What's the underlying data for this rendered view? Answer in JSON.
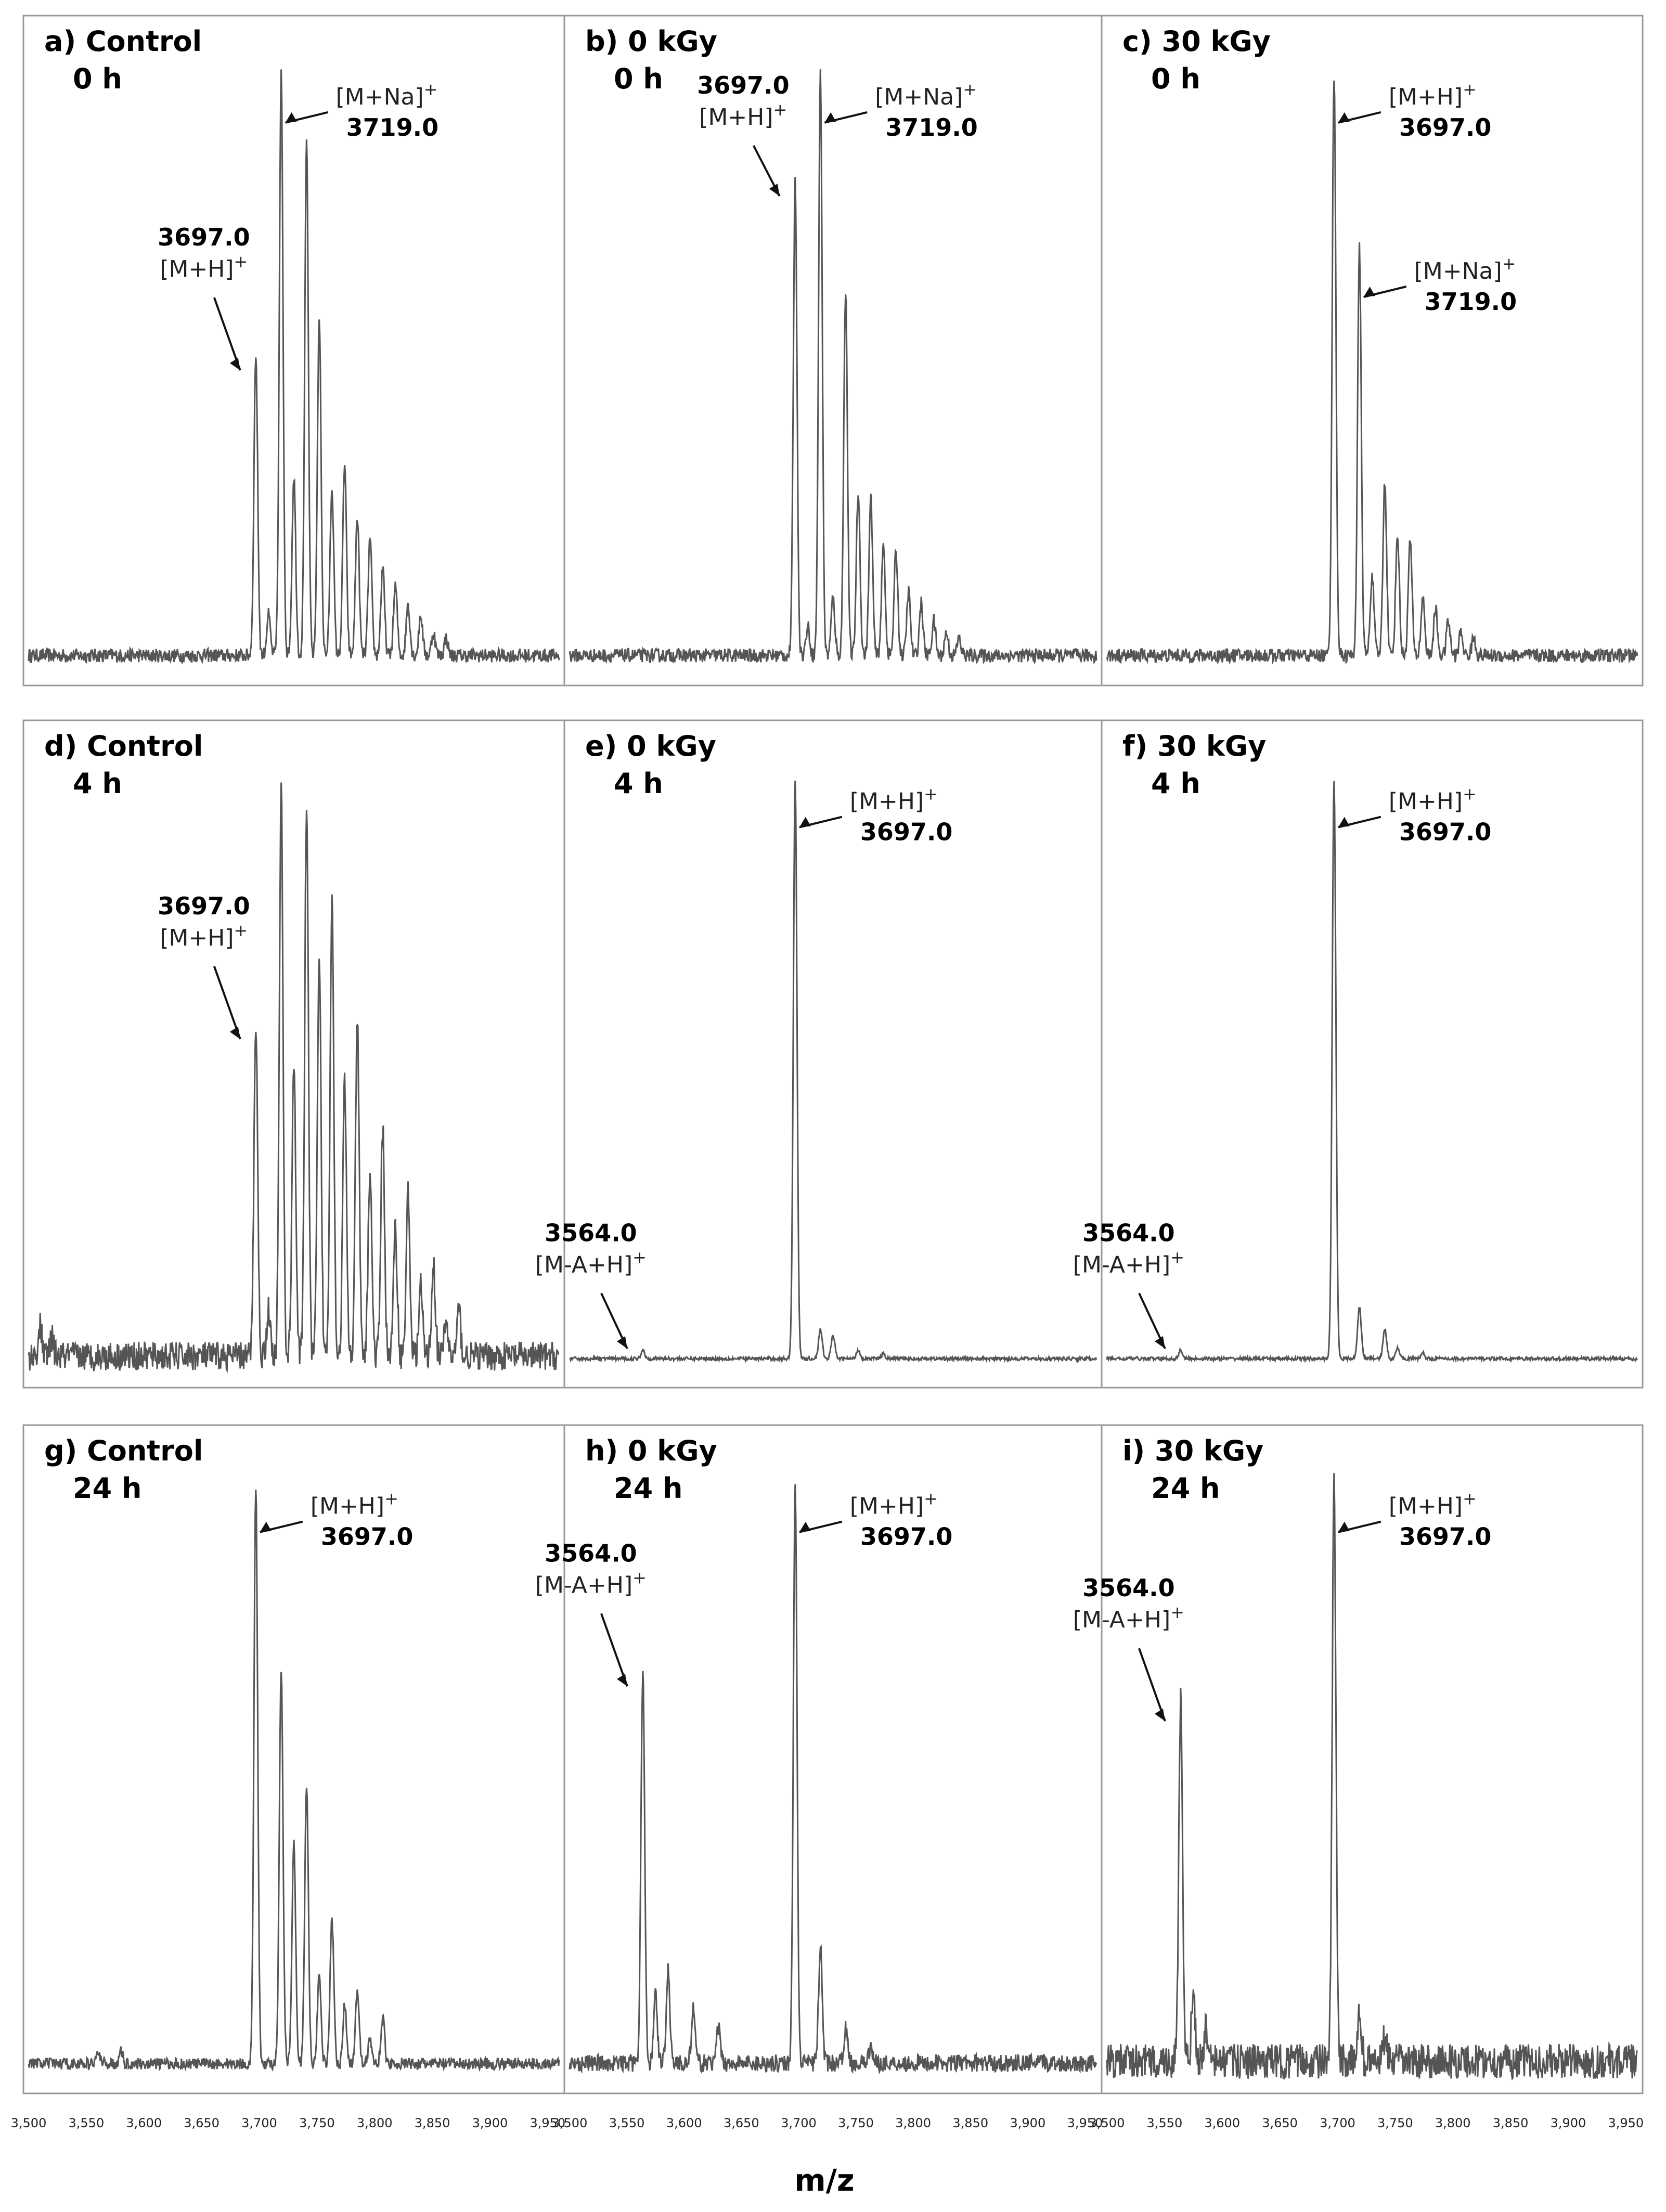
{
  "figure": {
    "xlabel": "m/z"
  },
  "colors": {
    "trace": "#555555",
    "annotation": "#111111",
    "frame": "#999999",
    "text": "#000000"
  },
  "chart_data": [
    {
      "id": "a",
      "type": "line",
      "title_line1": "a) Control",
      "title_line2": "0 h",
      "xlim": [
        3500,
        3960
      ],
      "ylim": [
        0,
        1.05
      ],
      "noise": 0.012,
      "peaks": [
        [
          3697,
          0.52
        ],
        [
          3719,
          1.0
        ],
        [
          3741,
          0.88
        ],
        [
          3763,
          0.29
        ],
        [
          3785,
          0.24
        ],
        [
          3807,
          0.15
        ],
        [
          3829,
          0.09
        ],
        [
          3851,
          0.04
        ],
        [
          3708,
          0.07
        ],
        [
          3730,
          0.31
        ],
        [
          3752,
          0.58
        ],
        [
          3774,
          0.33
        ],
        [
          3796,
          0.2
        ],
        [
          3818,
          0.12
        ],
        [
          3840,
          0.07
        ],
        [
          3862,
          0.03
        ]
      ],
      "annotations": [
        {
          "ion": "[M+H]+",
          "mz": "3697.0",
          "peak": 3697,
          "order": "mz-first"
        },
        {
          "ion": "[M+Na]+",
          "mz": "3719.0",
          "peak": 3719,
          "order": "ion-first"
        }
      ]
    },
    {
      "id": "b",
      "type": "line",
      "title_line1": "b) 0 kGy",
      "title_line2": "0 h",
      "xlim": [
        3500,
        3960
      ],
      "ylim": [
        0,
        1.05
      ],
      "noise": 0.012,
      "peaks": [
        [
          3697,
          0.82
        ],
        [
          3719,
          1.0
        ],
        [
          3741,
          0.63
        ],
        [
          3763,
          0.27
        ],
        [
          3785,
          0.18
        ],
        [
          3807,
          0.09
        ],
        [
          3829,
          0.04
        ],
        [
          3708,
          0.05
        ],
        [
          3730,
          0.1
        ],
        [
          3752,
          0.28
        ],
        [
          3774,
          0.19
        ],
        [
          3796,
          0.11
        ],
        [
          3818,
          0.06
        ],
        [
          3840,
          0.03
        ]
      ],
      "annotations": [
        {
          "ion": "[M+H]+",
          "mz": "3697.0",
          "peak": 3697,
          "order": "mz-first"
        },
        {
          "ion": "[M+Na]+",
          "mz": "3719.0",
          "peak": 3719,
          "order": "ion-first"
        }
      ]
    },
    {
      "id": "c",
      "type": "line",
      "title_line1": "c) 30 kGy",
      "title_line2": "0 h",
      "xlim": [
        3500,
        3960
      ],
      "ylim": [
        0,
        1.05
      ],
      "noise": 0.012,
      "peaks": [
        [
          3697,
          1.0
        ],
        [
          3719,
          0.7
        ],
        [
          3741,
          0.3
        ],
        [
          3763,
          0.2
        ],
        [
          3785,
          0.08
        ],
        [
          3807,
          0.04
        ],
        [
          3730,
          0.14
        ],
        [
          3752,
          0.21
        ],
        [
          3774,
          0.1
        ],
        [
          3796,
          0.06
        ],
        [
          3818,
          0.03
        ]
      ],
      "annotations": [
        {
          "ion": "[M+H]+",
          "mz": "3697.0",
          "peak": 3697,
          "order": "ion-first"
        },
        {
          "ion": "[M+Na]+",
          "mz": "3719.0",
          "peak": 3719,
          "order": "ion-first"
        }
      ]
    },
    {
      "id": "d",
      "type": "line",
      "title_line1": "d) Control",
      "title_line2": "4 h",
      "xlim": [
        3500,
        3960
      ],
      "ylim": [
        0,
        1.05
      ],
      "noise": 0.025,
      "peaks": [
        [
          3697,
          0.58
        ],
        [
          3719,
          0.98
        ],
        [
          3741,
          0.96
        ],
        [
          3763,
          0.8
        ],
        [
          3785,
          0.58
        ],
        [
          3807,
          0.4
        ],
        [
          3829,
          0.28
        ],
        [
          3851,
          0.16
        ],
        [
          3873,
          0.08
        ],
        [
          3708,
          0.08
        ],
        [
          3730,
          0.52
        ],
        [
          3752,
          0.68
        ],
        [
          3774,
          0.47
        ],
        [
          3796,
          0.32
        ],
        [
          3818,
          0.22
        ],
        [
          3840,
          0.12
        ],
        [
          3862,
          0.06
        ],
        [
          3510,
          0.05
        ],
        [
          3520,
          0.03
        ]
      ],
      "annotations": [
        {
          "ion": "[M+H]+",
          "mz": "3697.0",
          "peak": 3697,
          "order": "mz-first"
        }
      ]
    },
    {
      "id": "e",
      "type": "line",
      "title_line1": "e) 0 kGy",
      "title_line2": "4 h",
      "xlim": [
        3500,
        3960
      ],
      "ylim": [
        0,
        1.05
      ],
      "noise": 0.003,
      "peaks": [
        [
          3564,
          0.015
        ],
        [
          3697,
          1.0
        ],
        [
          3719,
          0.05
        ],
        [
          3730,
          0.04
        ],
        [
          3752,
          0.015
        ],
        [
          3774,
          0.008
        ]
      ],
      "annotations": [
        {
          "ion": "[M-A+H]+",
          "mz": "3564.0",
          "peak": 3564,
          "order": "mz-first"
        },
        {
          "ion": "[M+H]+",
          "mz": "3697.0",
          "peak": 3697,
          "order": "ion-first"
        }
      ]
    },
    {
      "id": "f",
      "type": "line",
      "title_line1": "f) 30 kGy",
      "title_line2": "4 h",
      "xlim": [
        3500,
        3960
      ],
      "ylim": [
        0,
        1.05
      ],
      "noise": 0.003,
      "peaks": [
        [
          3564,
          0.015
        ],
        [
          3697,
          1.0
        ],
        [
          3719,
          0.09
        ],
        [
          3741,
          0.05
        ],
        [
          3752,
          0.02
        ],
        [
          3774,
          0.01
        ]
      ],
      "annotations": [
        {
          "ion": "[M-A+H]+",
          "mz": "3564.0",
          "peak": 3564,
          "order": "mz-first"
        },
        {
          "ion": "[M+H]+",
          "mz": "3697.0",
          "peak": 3697,
          "order": "ion-first"
        }
      ]
    },
    {
      "id": "g",
      "type": "line",
      "title_line1": "g) Control",
      "title_line2": "24 h",
      "xlim": [
        3500,
        3960
      ],
      "ylim": [
        0,
        1.05
      ],
      "noise": 0.01,
      "peaks": [
        [
          3697,
          1.0
        ],
        [
          3719,
          0.68
        ],
        [
          3741,
          0.48
        ],
        [
          3763,
          0.25
        ],
        [
          3785,
          0.13
        ],
        [
          3807,
          0.08
        ],
        [
          3730,
          0.38
        ],
        [
          3752,
          0.15
        ],
        [
          3774,
          0.1
        ],
        [
          3796,
          0.04
        ],
        [
          3580,
          0.02
        ],
        [
          3560,
          0.02
        ]
      ],
      "annotations": [
        {
          "ion": "[M+H]+",
          "mz": "3697.0",
          "peak": 3697,
          "order": "ion-first"
        }
      ]
    },
    {
      "id": "h",
      "type": "line",
      "title_line1": "h) 0 kGy",
      "title_line2": "24 h",
      "xlim": [
        3500,
        3960
      ],
      "ylim": [
        0,
        1.05
      ],
      "noise": 0.015,
      "peaks": [
        [
          3564,
          0.68
        ],
        [
          3586,
          0.16
        ],
        [
          3608,
          0.09
        ],
        [
          3630,
          0.06
        ],
        [
          3575,
          0.12
        ],
        [
          3697,
          1.0
        ],
        [
          3719,
          0.2
        ],
        [
          3741,
          0.06
        ],
        [
          3763,
          0.03
        ]
      ],
      "annotations": [
        {
          "ion": "[M-A+H]+",
          "mz": "3564.0",
          "peak": 3564,
          "order": "mz-first"
        },
        {
          "ion": "[M+H]+",
          "mz": "3697.0",
          "peak": 3697,
          "order": "ion-first"
        }
      ]
    },
    {
      "id": "i",
      "type": "line",
      "title_line1": "i) 30 kGy",
      "title_line2": "24 h",
      "xlim": [
        3500,
        3960
      ],
      "ylim": [
        0,
        1.05
      ],
      "noise": 0.03,
      "peaks": [
        [
          3564,
          0.62
        ],
        [
          3575,
          0.12
        ],
        [
          3586,
          0.06
        ],
        [
          3697,
          1.0
        ],
        [
          3719,
          0.09
        ],
        [
          3741,
          0.04
        ]
      ],
      "annotations": [
        {
          "ion": "[M-A+H]+",
          "mz": "3564.0",
          "peak": 3564,
          "order": "mz-first"
        },
        {
          "ion": "[M+H]+",
          "mz": "3697.0",
          "peak": 3697,
          "order": "ion-first"
        }
      ]
    }
  ],
  "x_axis": {
    "ticks": [
      "3,500",
      "3,550",
      "3,600",
      "3,650",
      "3,700",
      "3,750",
      "3,800",
      "3,850",
      "3,900",
      "3,950"
    ],
    "tick_values": [
      3500,
      3550,
      3600,
      3650,
      3700,
      3750,
      3800,
      3850,
      3900,
      3950
    ]
  }
}
